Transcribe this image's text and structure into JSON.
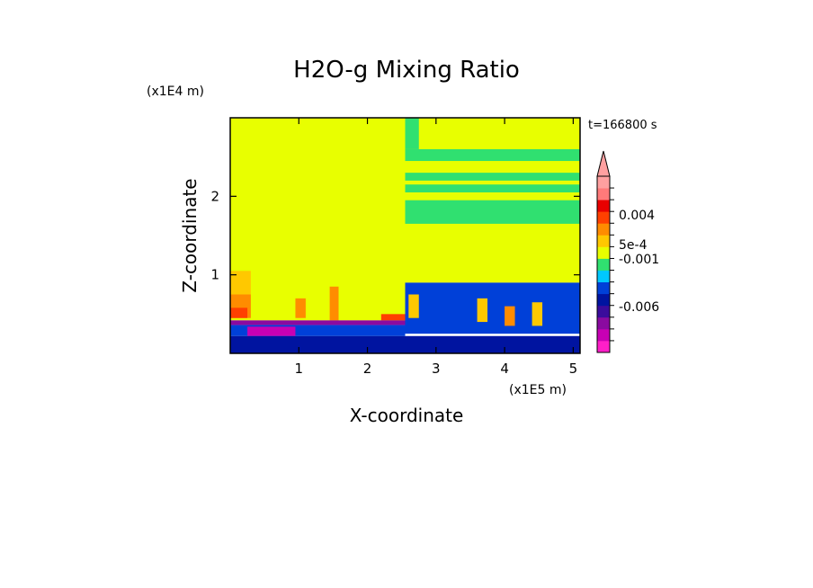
{
  "chart_data": {
    "type": "heatmap",
    "title": "H2O-g Mixing Ratio",
    "xlabel": "X-coordinate",
    "ylabel": "Z-coordinate",
    "x_unit": "(x1E5 m)",
    "y_unit": "(x1E4 m)",
    "time_label": "t=166800 s",
    "x_ticks": [
      "1",
      "2",
      "3",
      "4",
      "5"
    ],
    "x_tick_values": [
      1,
      2,
      3,
      4,
      5
    ],
    "y_ticks": [
      "1",
      "2"
    ],
    "y_tick_values": [
      1,
      2
    ],
    "xlim": [
      0,
      5.1
    ],
    "ylim": [
      0,
      3.0
    ],
    "colorbar": {
      "colors": [
        "#ff1fc8",
        "#c800b4",
        "#8a0aa0",
        "#3a0c9c",
        "#0014a0",
        "#0040d8",
        "#00c8ff",
        "#30e070",
        "#e8ff00",
        "#ffc800",
        "#ff8c00",
        "#ff4000",
        "#e80000",
        "#ff7a7a",
        "#ffa0a0"
      ],
      "labels": [
        "0.004",
        "5e-4",
        "-0.001",
        "-0.006"
      ],
      "extend": "max"
    },
    "regions": [
      {
        "x": [
          0,
          2.55
        ],
        "y": [
          0.42,
          3.0
        ],
        "color": "#e8ff00"
      },
      {
        "x": [
          0,
          0.3
        ],
        "y": [
          0.45,
          1.05
        ],
        "color": "#ffc800"
      },
      {
        "x": [
          0,
          0.3
        ],
        "y": [
          0.45,
          0.75
        ],
        "color": "#ff8c00"
      },
      {
        "x": [
          0,
          0.25
        ],
        "y": [
          0.45,
          0.58
        ],
        "color": "#ff4000"
      },
      {
        "x": [
          0.95,
          1.1
        ],
        "y": [
          0.45,
          0.7
        ],
        "color": "#ff8c00"
      },
      {
        "x": [
          1.45,
          1.58
        ],
        "y": [
          0.42,
          0.85
        ],
        "color": "#ff8c00"
      },
      {
        "x": [
          2.2,
          2.55
        ],
        "y": [
          0.42,
          0.5
        ],
        "color": "#ff4000"
      },
      {
        "x": [
          0,
          2.55
        ],
        "y": [
          0.36,
          0.42
        ],
        "color": "#8a0aa0"
      },
      {
        "x": [
          0,
          2.55
        ],
        "y": [
          0.22,
          0.36
        ],
        "color": "#0040d8"
      },
      {
        "x": [
          0.25,
          0.95
        ],
        "y": [
          0.22,
          0.34
        ],
        "color": "#c800b4"
      },
      {
        "x": [
          0,
          5.1
        ],
        "y": [
          0,
          0.22
        ],
        "color": "#0014a0"
      },
      {
        "x": [
          2.55,
          5.1
        ],
        "y": [
          0.9,
          3.0
        ],
        "color": "#e8ff00"
      },
      {
        "x": [
          2.55,
          5.1
        ],
        "y": [
          0.25,
          0.9
        ],
        "color": "#0040d8"
      },
      {
        "x": [
          2.6,
          2.75
        ],
        "y": [
          0.45,
          0.75
        ],
        "color": "#ffc800"
      },
      {
        "x": [
          3.6,
          3.75
        ],
        "y": [
          0.4,
          0.7
        ],
        "color": "#ffc800"
      },
      {
        "x": [
          4.0,
          4.15
        ],
        "y": [
          0.35,
          0.6
        ],
        "color": "#ff8c00"
      },
      {
        "x": [
          4.4,
          4.55
        ],
        "y": [
          0.35,
          0.65
        ],
        "color": "#ffc800"
      },
      {
        "x": [
          2.55,
          5.1
        ],
        "y": [
          2.05,
          2.15
        ],
        "color": "#30e070"
      },
      {
        "x": [
          2.55,
          5.1
        ],
        "y": [
          1.65,
          1.95
        ],
        "color": "#30e070"
      },
      {
        "x": [
          2.55,
          5.1
        ],
        "y": [
          2.45,
          2.6
        ],
        "color": "#30e070"
      },
      {
        "x": [
          2.55,
          5.1
        ],
        "y": [
          2.2,
          2.3
        ],
        "color": "#30e070"
      },
      {
        "x": [
          2.55,
          2.75
        ],
        "y": [
          2.6,
          3.0
        ],
        "color": "#30e070"
      }
    ]
  }
}
